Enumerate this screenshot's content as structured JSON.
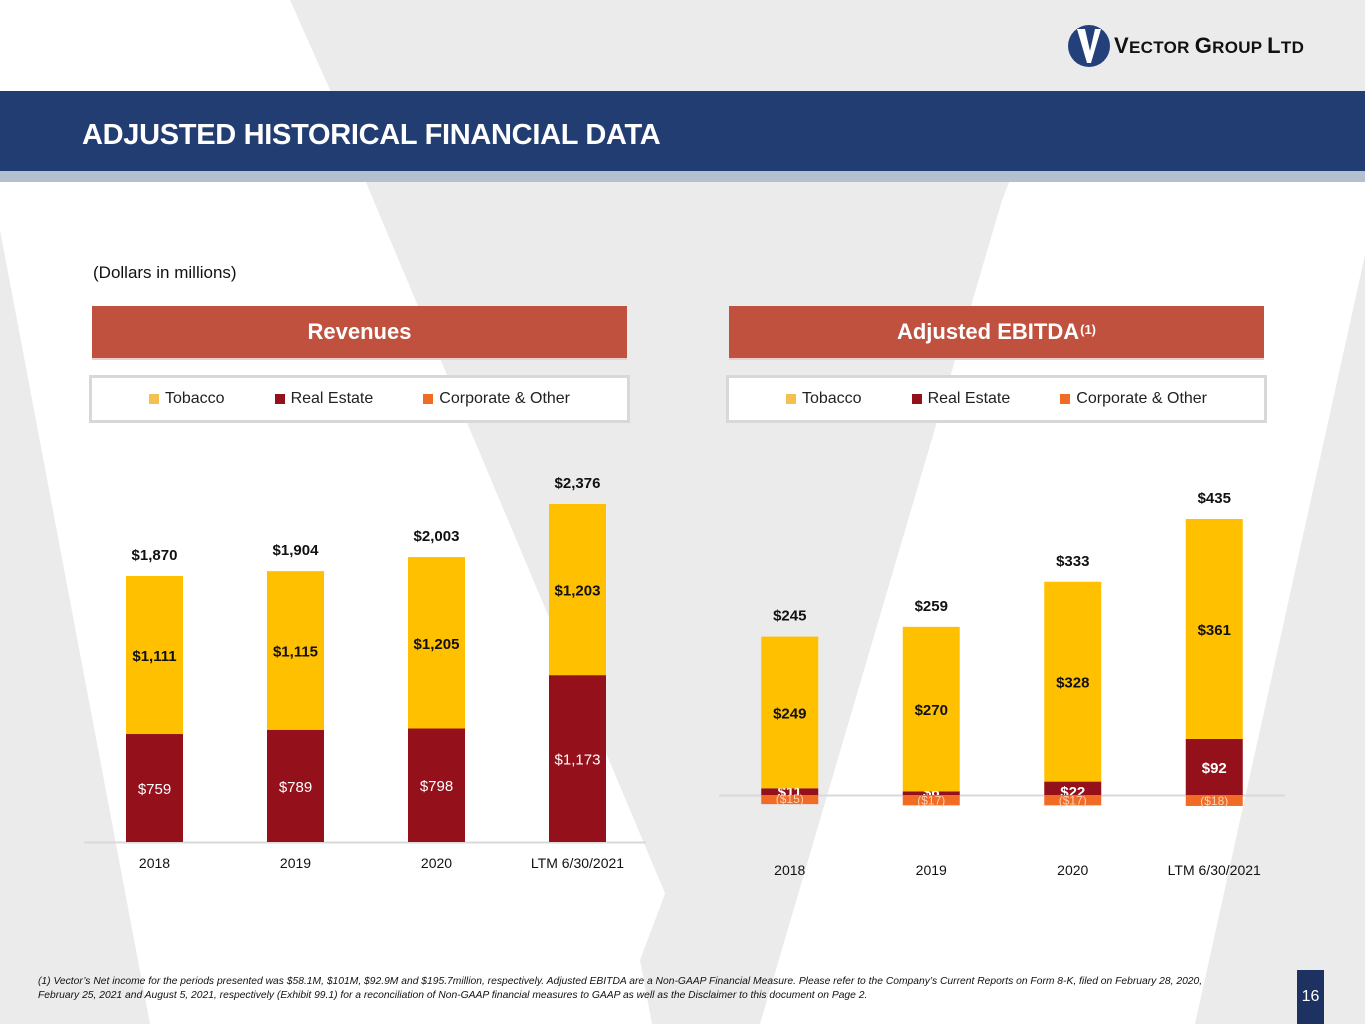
{
  "header": {
    "logo_text_v": "V",
    "logo_text_rest": "ECTOR ",
    "logo_text_g": "G",
    "logo_text_roup": "ROUP ",
    "logo_text_l": "L",
    "logo_text_td": "TD",
    "title": "ADJUSTED HISTORICAL FINANCIAL DATA"
  },
  "units_note": "(Dollars in millions)",
  "colors": {
    "tobacco": "#ffc000",
    "real_estate": "#94111c",
    "corporate_other": "#f26b24",
    "brand_navy": "#223d72",
    "panel_header": "#c0513f"
  },
  "legend": {
    "items": [
      {
        "label": "Tobacco",
        "color": "#f2c14e"
      },
      {
        "label": "Real Estate",
        "color": "#94111c"
      },
      {
        "label": "Corporate & Other",
        "color": "#f26b24"
      }
    ]
  },
  "chart_data": [
    {
      "type": "bar",
      "stacked": true,
      "title": "Revenues",
      "title_sup": "",
      "categories": [
        "2018",
        "2019",
        "2020",
        "LTM 6/30/2021"
      ],
      "series": [
        {
          "name": "Real Estate",
          "values": [
            759,
            789,
            798,
            1173
          ],
          "labels": [
            "$759",
            "$789",
            "$798",
            "$1,173"
          ]
        },
        {
          "name": "Tobacco",
          "values": [
            1111,
            1115,
            1205,
            1203
          ],
          "labels": [
            "$1,111",
            "$1,115",
            "$1,205",
            "$1,203"
          ]
        },
        {
          "name": "Corporate & Other",
          "values": [
            0,
            0,
            0,
            0
          ],
          "labels": [
            "",
            "",
            "",
            ""
          ]
        }
      ],
      "totals": [
        1870,
        1904,
        2003,
        2376
      ],
      "total_labels": [
        "$1,870",
        "$1,904",
        "$2,003",
        "$2,376"
      ],
      "ylim": [
        0,
        2376
      ],
      "xlabel": "",
      "ylabel": "",
      "grid": false,
      "legend": "top"
    },
    {
      "type": "bar",
      "stacked": true,
      "title": "Adjusted EBITDA",
      "title_sup": "(1)",
      "categories": [
        "2018",
        "2019",
        "2020",
        "LTM 6/30/2021"
      ],
      "series": [
        {
          "name": "Real Estate",
          "values": [
            11,
            6,
            22,
            92
          ],
          "labels": [
            "$11",
            "$6",
            "$22",
            "$92"
          ]
        },
        {
          "name": "Tobacco",
          "values": [
            249,
            270,
            328,
            361
          ],
          "labels": [
            "$249",
            "$270",
            "$328",
            "$361"
          ]
        },
        {
          "name": "Corporate & Other",
          "values": [
            -15,
            -17,
            -17,
            -18
          ],
          "labels": [
            "($15)",
            "($17)",
            "($17)",
            "($18)"
          ]
        }
      ],
      "totals": [
        245,
        259,
        333,
        435
      ],
      "total_labels": [
        "$245",
        "$259",
        "$333",
        "$435"
      ],
      "ylim": [
        -18,
        453
      ],
      "xlabel": "",
      "ylabel": "",
      "grid": false,
      "legend": "top"
    }
  ],
  "footnote": {
    "line1": "(1) Vector’s Net income for the periods presented was $58.1M, $101M,  $92.9M and $195.7million, respectively. Adjusted EBITDA are a Non-GAAP Financial Measure. Please refer to the Company’s Current Reports on Form 8-K, filed on February 28, 2020,",
    "line2": "February 25, 2021 and August 5, 2021, respectively (Exhibit 99.1) for a reconciliation of Non-GAAP financial measures to GAAP as well as the Disclaimer to this document on Page 2."
  },
  "page_number": "16"
}
